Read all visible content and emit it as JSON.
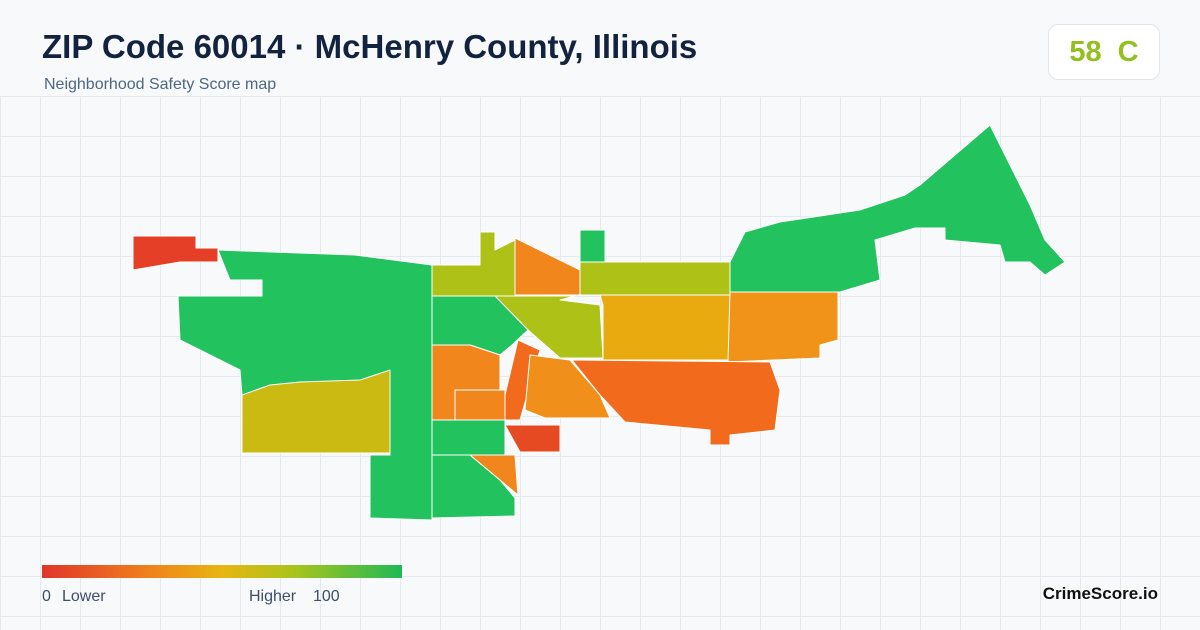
{
  "header": {
    "title": "ZIP Code 60014 · McHenry County, Illinois",
    "subtitle": "Neighborhood Safety Score map"
  },
  "score": {
    "value": 58,
    "grade": "C"
  },
  "legend": {
    "min": 0,
    "min_label": "Lower",
    "max_label": "Higher",
    "max": 100
  },
  "brand": "CrimeScore.io"
}
